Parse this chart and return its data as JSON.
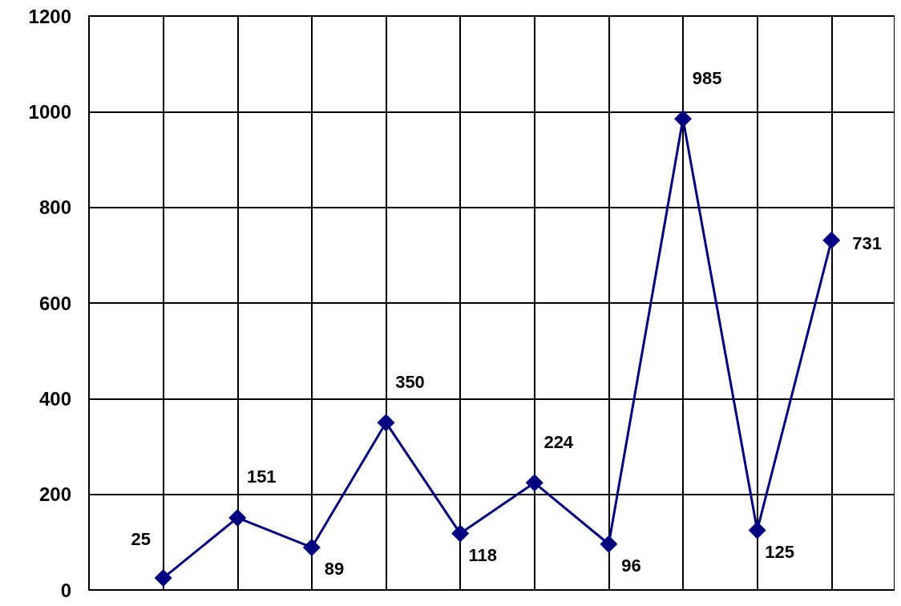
{
  "chart_data": {
    "type": "line",
    "categories": [
      null,
      null,
      null,
      null,
      null,
      null,
      null,
      null,
      null,
      null
    ],
    "series": [
      {
        "color": "#000080",
        "values": [
          25,
          151,
          89,
          350,
          118,
          224,
          96,
          985,
          125,
          731
        ]
      }
    ],
    "ylim": [
      0,
      1200
    ],
    "yticks": [
      0,
      200,
      400,
      600,
      800,
      1000,
      1200
    ],
    "grid": true,
    "marker": "diamond",
    "line_style": "solid",
    "data_labels": true,
    "tick_labels": "y"
  }
}
